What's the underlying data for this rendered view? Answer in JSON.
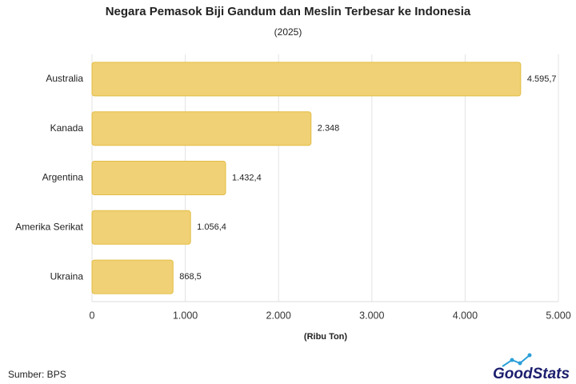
{
  "chart_data": {
    "type": "hbar",
    "title": "Negara Pemasok Biji Gandum dan Meslin Terbesar ke Indonesia",
    "subtitle": "(2025)",
    "categories": [
      "Australia",
      "Kanada",
      "Argentina",
      "Amerika Serikat",
      "Ukraina"
    ],
    "values": [
      4595.7,
      2348,
      1432.4,
      1056.4,
      868.5
    ],
    "value_labels": [
      "4.595,7",
      "2.348",
      "1.432,4",
      "1.056,4",
      "868,5"
    ],
    "color": "#f0d175",
    "xlabel": "(Ribu Ton)",
    "xlim": [
      0,
      5000
    ],
    "xticks": [
      0,
      {
        "value": 1000,
        "label": "1.000"
      },
      {
        "value": 2000,
        "label": "2.000"
      },
      {
        "value": 3000,
        "label": "3.000"
      },
      {
        "value": 4000,
        "label": "4.000"
      },
      {
        "value": 5000,
        "label": "5.000"
      }
    ],
    "grid": true
  },
  "source": "Sumber: BPS",
  "brand": "GoodStats"
}
